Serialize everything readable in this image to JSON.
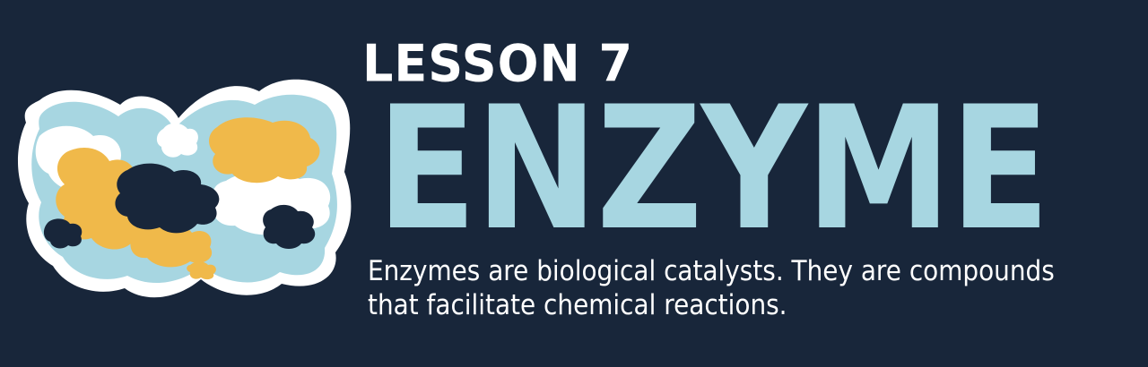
{
  "lesson": {
    "label": "LESSON 7"
  },
  "title": "ENZYME",
  "description": "Enzymes are biological catalysts. They are compounds that facilitate chemical reactions.",
  "illustration": {
    "icon": "enzyme-molecule-icon"
  },
  "colors": {
    "background": "#18263a",
    "title": "#a7d6e1",
    "outline": "#ffffff",
    "blob_light_blue": "#a7d6e1",
    "blob_yellow": "#f0b94a",
    "blob_navy": "#18263a"
  }
}
